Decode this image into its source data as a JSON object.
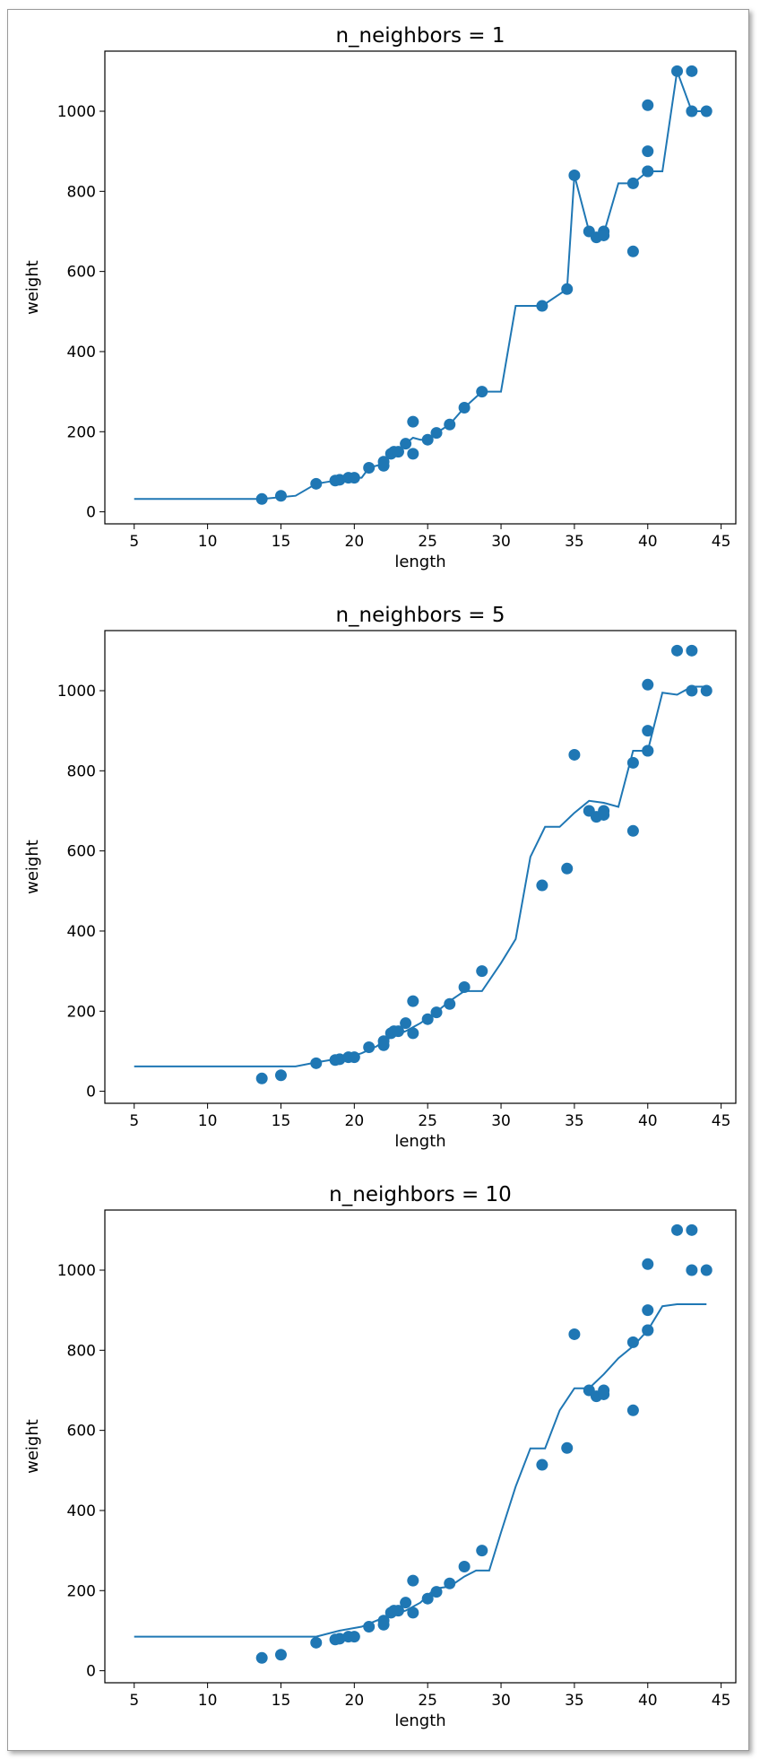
{
  "chart_data": [
    {
      "type": "scatter",
      "title": "n_neighbors = 1",
      "xlabel": "length",
      "ylabel": "weight",
      "xlim": [
        3,
        46
      ],
      "ylim": [
        -30,
        1150
      ],
      "xticks": [
        5,
        10,
        15,
        20,
        25,
        30,
        35,
        40,
        45
      ],
      "yticks": [
        0,
        200,
        400,
        600,
        800,
        1000
      ],
      "scatter": {
        "x": [
          13.7,
          15.0,
          17.4,
          18.7,
          19.0,
          19.6,
          20.0,
          21.0,
          22.0,
          22.0,
          22.5,
          22.7,
          23.0,
          23.5,
          24.0,
          24.0,
          25.0,
          25.6,
          26.5,
          27.5,
          28.7,
          32.8,
          34.5,
          35.0,
          36.0,
          36.5,
          37.0,
          37.0,
          39.0,
          39.0,
          40.0,
          40.0,
          40.0,
          40.0,
          42.0,
          43.0,
          43.0,
          44.0
        ],
        "y": [
          32,
          40,
          70,
          78,
          80,
          85,
          85,
          110,
          115,
          125,
          145,
          150,
          150,
          170,
          225,
          145,
          180,
          197,
          218,
          260,
          300,
          514,
          556,
          840,
          700,
          685,
          700,
          690,
          650,
          820,
          850,
          900,
          1015,
          850,
          1100,
          1000,
          1100,
          1000
        ]
      },
      "line": {
        "x": [
          5,
          13.7,
          16,
          17.4,
          18.7,
          19.6,
          20.5,
          21,
          22,
          22.5,
          23,
          23.5,
          24,
          24.5,
          25,
          25.6,
          26.5,
          27.5,
          28.7,
          30,
          31,
          32.8,
          34.5,
          35,
          36,
          36.5,
          37,
          38,
          39,
          40,
          41,
          42,
          43,
          44
        ],
        "y": [
          32,
          32,
          40,
          70,
          78,
          85,
          85,
          110,
          120,
          145,
          150,
          170,
          185,
          180,
          180,
          197,
          218,
          260,
          300,
          300,
          514,
          514,
          556,
          840,
          700,
          685,
          695,
          820,
          820,
          850,
          850,
          1100,
          1000,
          1000
        ]
      }
    },
    {
      "type": "scatter",
      "title": "n_neighbors = 5",
      "xlabel": "length",
      "ylabel": "weight",
      "xlim": [
        3,
        46
      ],
      "ylim": [
        -30,
        1150
      ],
      "xticks": [
        5,
        10,
        15,
        20,
        25,
        30,
        35,
        40,
        45
      ],
      "yticks": [
        0,
        200,
        400,
        600,
        800,
        1000
      ],
      "scatter": {
        "x": [
          13.7,
          15.0,
          17.4,
          18.7,
          19.0,
          19.6,
          20.0,
          21.0,
          22.0,
          22.0,
          22.5,
          22.7,
          23.0,
          23.5,
          24.0,
          24.0,
          25.0,
          25.6,
          26.5,
          27.5,
          28.7,
          32.8,
          34.5,
          35.0,
          36.0,
          36.5,
          37.0,
          37.0,
          39.0,
          39.0,
          40.0,
          40.0,
          40.0,
          40.0,
          42.0,
          43.0,
          43.0,
          44.0
        ],
        "y": [
          32,
          40,
          70,
          78,
          80,
          85,
          85,
          110,
          115,
          125,
          145,
          150,
          150,
          170,
          225,
          145,
          180,
          197,
          218,
          260,
          300,
          514,
          556,
          840,
          700,
          685,
          700,
          690,
          650,
          820,
          850,
          900,
          1015,
          850,
          1100,
          1000,
          1100,
          1000
        ]
      },
      "line": {
        "x": [
          5,
          16,
          17.4,
          18.7,
          19.6,
          20.5,
          21.5,
          22.5,
          23.5,
          24.5,
          25.5,
          26.5,
          27.5,
          28.7,
          30,
          31,
          32,
          33,
          34,
          35,
          36,
          37,
          38,
          39,
          40,
          41,
          42,
          43,
          44
        ],
        "y": [
          62,
          62,
          72,
          80,
          85,
          95,
          112,
          135,
          150,
          170,
          195,
          225,
          250,
          250,
          320,
          380,
          585,
          660,
          660,
          695,
          725,
          720,
          710,
          850,
          850,
          995,
          990,
          1010,
          1010
        ]
      }
    },
    {
      "type": "scatter",
      "title": "n_neighbors = 10",
      "xlabel": "length",
      "ylabel": "weight",
      "xlim": [
        3,
        46
      ],
      "ylim": [
        -30,
        1150
      ],
      "xticks": [
        5,
        10,
        15,
        20,
        25,
        30,
        35,
        40,
        45
      ],
      "yticks": [
        0,
        200,
        400,
        600,
        800,
        1000
      ],
      "scatter": {
        "x": [
          13.7,
          15.0,
          17.4,
          18.7,
          19.0,
          19.6,
          20.0,
          21.0,
          22.0,
          22.0,
          22.5,
          22.7,
          23.0,
          23.5,
          24.0,
          24.0,
          25.0,
          25.6,
          26.5,
          27.5,
          28.7,
          32.8,
          34.5,
          35.0,
          36.0,
          36.5,
          37.0,
          37.0,
          39.0,
          39.0,
          40.0,
          40.0,
          40.0,
          40.0,
          42.0,
          43.0,
          43.0,
          44.0
        ],
        "y": [
          32,
          40,
          70,
          78,
          80,
          85,
          85,
          110,
          115,
          125,
          145,
          150,
          150,
          170,
          225,
          145,
          180,
          197,
          218,
          260,
          300,
          514,
          556,
          840,
          700,
          685,
          700,
          690,
          650,
          820,
          850,
          900,
          1015,
          850,
          1100,
          1000,
          1100,
          1000
        ]
      },
      "line": {
        "x": [
          5,
          17.4,
          19,
          20.5,
          21.5,
          22.5,
          23.5,
          24.5,
          25.5,
          26.5,
          27.5,
          28.3,
          29.2,
          30,
          31,
          32,
          33,
          34,
          35,
          36,
          37,
          38,
          39,
          40,
          41,
          42,
          43,
          44
        ],
        "y": [
          85,
          85,
          100,
          110,
          125,
          140,
          150,
          170,
          205,
          210,
          235,
          250,
          250,
          345,
          460,
          555,
          555,
          650,
          705,
          705,
          740,
          780,
          810,
          850,
          910,
          915,
          915,
          915
        ]
      }
    }
  ],
  "colors": {
    "series": "#1f77b4"
  }
}
